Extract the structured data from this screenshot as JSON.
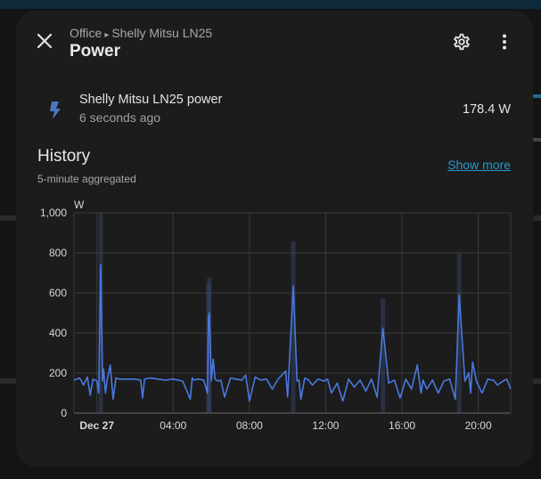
{
  "dialog": {
    "breadcrumb": {
      "area": "Office",
      "separator": "▸",
      "device": "Shelly Mitsu LN25"
    },
    "title": "Power",
    "close_icon": "close-icon",
    "settings_icon": "gear-icon",
    "menu_icon": "more-vertical-icon"
  },
  "entity": {
    "icon": "flash-icon",
    "name": "Shelly Mitsu LN25 power",
    "last_changed": "6 seconds ago",
    "state": "178.4 W"
  },
  "history": {
    "title": "History",
    "subtitle": "5-minute aggregated",
    "show_more_label": "Show more"
  },
  "colors": {
    "accent": "#2a98cc",
    "series": "#4a78e0",
    "band": "#3a4a70",
    "background": "#1c1c1c"
  },
  "chart_data": {
    "type": "line",
    "title": "",
    "xlabel": "",
    "ylabel": "W",
    "unit": "W",
    "ylim": [
      0,
      1000
    ],
    "y_ticks": [
      0,
      200,
      400,
      600,
      800,
      1000
    ],
    "y_tick_labels": [
      "0",
      "200",
      "400",
      "600",
      "800",
      "1,000"
    ],
    "x_tick_labels": [
      "Dec 27",
      "04:00",
      "08:00",
      "12:00",
      "16:00",
      "20:00"
    ],
    "x_tick_hours": [
      0,
      4,
      8,
      12,
      16,
      20
    ],
    "xlim_hours": [
      -1.2,
      21.7
    ],
    "grid": true,
    "legend": "none",
    "series": [
      {
        "name": "",
        "x_hours": [
          -1.2,
          -0.9,
          -0.7,
          -0.5,
          -0.35,
          -0.2,
          0.0,
          0.1,
          0.2,
          0.3,
          0.35,
          0.45,
          0.55,
          0.7,
          0.85,
          1.0,
          1.2,
          1.5,
          2.0,
          2.3,
          2.4,
          2.5,
          2.8,
          3.2,
          3.6,
          4.0,
          4.5,
          4.9,
          5.0,
          5.1,
          5.3,
          5.6,
          5.8,
          5.85,
          5.9,
          6.0,
          6.1,
          6.2,
          6.35,
          6.5,
          6.7,
          7.0,
          7.3,
          7.6,
          7.8,
          8.0,
          8.3,
          8.6,
          8.9,
          9.2,
          9.5,
          9.9,
          10.0,
          10.3,
          10.5,
          10.6,
          10.7,
          10.9,
          11.1,
          11.3,
          11.6,
          11.9,
          12.1,
          12.3,
          12.6,
          12.9,
          13.2,
          13.5,
          13.8,
          14.1,
          14.4,
          14.7,
          15.0,
          15.3,
          15.6,
          15.9,
          16.2,
          16.5,
          16.8,
          17.0,
          17.1,
          17.3,
          17.6,
          17.9,
          18.2,
          18.5,
          18.8,
          19.0,
          19.3,
          19.5,
          19.6,
          19.7,
          19.9,
          20.2,
          20.5,
          20.7,
          20.8,
          21.0,
          21.3,
          21.5,
          21.7
        ],
        "values": [
          165,
          175,
          140,
          180,
          90,
          170,
          160,
          100,
          740,
          160,
          220,
          100,
          170,
          240,
          70,
          175,
          170,
          170,
          170,
          165,
          75,
          170,
          175,
          170,
          165,
          170,
          160,
          70,
          175,
          165,
          170,
          165,
          100,
          480,
          500,
          160,
          270,
          170,
          160,
          165,
          80,
          175,
          170,
          165,
          190,
          60,
          180,
          165,
          170,
          120,
          170,
          210,
          80,
          635,
          160,
          165,
          70,
          175,
          165,
          140,
          170,
          160,
          170,
          100,
          150,
          60,
          170,
          130,
          165,
          110,
          170,
          80,
          425,
          150,
          165,
          75,
          170,
          120,
          240,
          100,
          165,
          120,
          165,
          100,
          160,
          170,
          70,
          590,
          160,
          200,
          100,
          255,
          160,
          100,
          170,
          165,
          165,
          140,
          160,
          170,
          120
        ]
      }
    ]
  }
}
